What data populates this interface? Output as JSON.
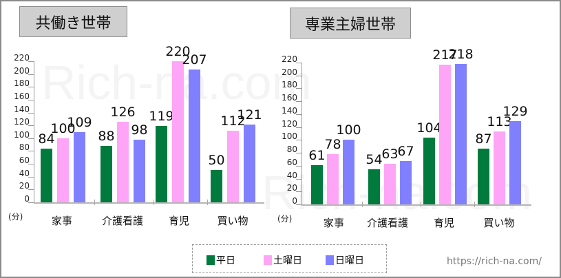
{
  "chart_data": [
    {
      "type": "bar",
      "title": "共働き世帯",
      "xlabel": "",
      "ylabel": "(分)",
      "ylim": [
        0,
        220
      ],
      "yticks": [
        0,
        20,
        40,
        60,
        80,
        100,
        120,
        140,
        160,
        180,
        200,
        220
      ],
      "categories": [
        "家事",
        "介護看護",
        "育児",
        "買い物"
      ],
      "series": [
        {
          "name": "平日",
          "color": "#007A3D",
          "values": [
            84,
            88,
            119,
            50
          ]
        },
        {
          "name": "土曜日",
          "color": "#FFA5F7",
          "values": [
            100,
            126,
            220,
            112
          ]
        },
        {
          "name": "日曜日",
          "color": "#8080FF",
          "values": [
            109,
            98,
            207,
            121
          ]
        }
      ],
      "legend_position": "bottom"
    },
    {
      "type": "bar",
      "title": "専業主婦世帯",
      "xlabel": "",
      "ylabel": "(分)",
      "ylim": [
        0,
        220
      ],
      "yticks": [
        0,
        20,
        40,
        60,
        80,
        100,
        120,
        140,
        160,
        180,
        200,
        220
      ],
      "categories": [
        "家事",
        "介護看護",
        "育児",
        "買い物"
      ],
      "series": [
        {
          "name": "平日",
          "color": "#007A3D",
          "values": [
            61,
            54,
            104,
            87
          ]
        },
        {
          "name": "土曜日",
          "color": "#FFA5F7",
          "values": [
            78,
            63,
            217,
            113
          ]
        },
        {
          "name": "日曜日",
          "color": "#8080FF",
          "values": [
            100,
            67,
            218,
            129
          ]
        }
      ],
      "legend_position": "bottom"
    }
  ],
  "titles": {
    "left": "共働き世帯",
    "right": "専業主婦世帯"
  },
  "unit_label": "(分)",
  "legend": [
    {
      "label": "平日",
      "color": "#007A3D"
    },
    {
      "label": "土曜日",
      "color": "#FFA5F7"
    },
    {
      "label": "日曜日",
      "color": "#8080FF"
    }
  ],
  "url": "https://rich-na.com/",
  "watermark": "Rich-na.com"
}
